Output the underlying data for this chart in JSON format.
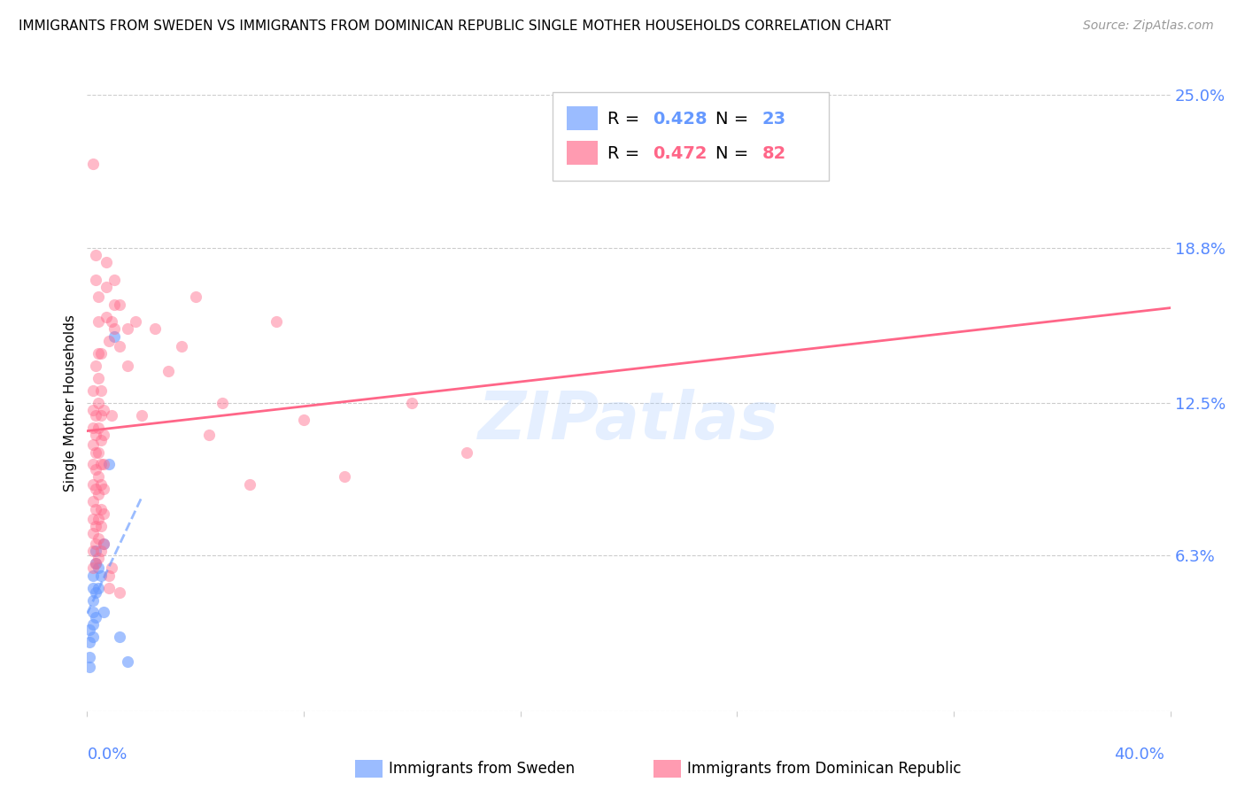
{
  "title": "IMMIGRANTS FROM SWEDEN VS IMMIGRANTS FROM DOMINICAN REPUBLIC SINGLE MOTHER HOUSEHOLDS CORRELATION CHART",
  "source": "Source: ZipAtlas.com",
  "ylabel": "Single Mother Households",
  "color_sweden": "#6699ff",
  "color_dr": "#ff6688",
  "color_axis_labels": "#5588ff",
  "x_lim": [
    0.0,
    0.4
  ],
  "y_lim": [
    0.0,
    0.25
  ],
  "y_ticks": [
    0.0,
    0.063,
    0.125,
    0.188,
    0.25
  ],
  "y_tick_labels": [
    "",
    "6.3%",
    "12.5%",
    "18.8%",
    "25.0%"
  ],
  "sweden_scatter": [
    [
      0.001,
      0.033
    ],
    [
      0.001,
      0.028
    ],
    [
      0.001,
      0.022
    ],
    [
      0.001,
      0.018
    ],
    [
      0.002,
      0.055
    ],
    [
      0.002,
      0.05
    ],
    [
      0.002,
      0.045
    ],
    [
      0.002,
      0.04
    ],
    [
      0.002,
      0.035
    ],
    [
      0.002,
      0.03
    ],
    [
      0.003,
      0.065
    ],
    [
      0.003,
      0.06
    ],
    [
      0.003,
      0.048
    ],
    [
      0.003,
      0.038
    ],
    [
      0.004,
      0.058
    ],
    [
      0.004,
      0.05
    ],
    [
      0.005,
      0.055
    ],
    [
      0.006,
      0.068
    ],
    [
      0.006,
      0.04
    ],
    [
      0.008,
      0.1
    ],
    [
      0.01,
      0.152
    ],
    [
      0.012,
      0.03
    ],
    [
      0.015,
      0.02
    ]
  ],
  "dr_scatter": [
    [
      0.002,
      0.058
    ],
    [
      0.002,
      0.065
    ],
    [
      0.002,
      0.072
    ],
    [
      0.002,
      0.078
    ],
    [
      0.002,
      0.085
    ],
    [
      0.002,
      0.092
    ],
    [
      0.002,
      0.1
    ],
    [
      0.002,
      0.108
    ],
    [
      0.002,
      0.115
    ],
    [
      0.002,
      0.122
    ],
    [
      0.002,
      0.13
    ],
    [
      0.002,
      0.222
    ],
    [
      0.003,
      0.06
    ],
    [
      0.003,
      0.068
    ],
    [
      0.003,
      0.075
    ],
    [
      0.003,
      0.082
    ],
    [
      0.003,
      0.09
    ],
    [
      0.003,
      0.098
    ],
    [
      0.003,
      0.105
    ],
    [
      0.003,
      0.112
    ],
    [
      0.003,
      0.12
    ],
    [
      0.003,
      0.14
    ],
    [
      0.003,
      0.175
    ],
    [
      0.003,
      0.185
    ],
    [
      0.004,
      0.062
    ],
    [
      0.004,
      0.07
    ],
    [
      0.004,
      0.078
    ],
    [
      0.004,
      0.088
    ],
    [
      0.004,
      0.095
    ],
    [
      0.004,
      0.105
    ],
    [
      0.004,
      0.115
    ],
    [
      0.004,
      0.125
    ],
    [
      0.004,
      0.135
    ],
    [
      0.004,
      0.145
    ],
    [
      0.004,
      0.158
    ],
    [
      0.004,
      0.168
    ],
    [
      0.005,
      0.065
    ],
    [
      0.005,
      0.075
    ],
    [
      0.005,
      0.082
    ],
    [
      0.005,
      0.092
    ],
    [
      0.005,
      0.1
    ],
    [
      0.005,
      0.11
    ],
    [
      0.005,
      0.12
    ],
    [
      0.005,
      0.13
    ],
    [
      0.005,
      0.145
    ],
    [
      0.006,
      0.068
    ],
    [
      0.006,
      0.08
    ],
    [
      0.006,
      0.09
    ],
    [
      0.006,
      0.1
    ],
    [
      0.006,
      0.112
    ],
    [
      0.006,
      0.122
    ],
    [
      0.007,
      0.16
    ],
    [
      0.007,
      0.172
    ],
    [
      0.007,
      0.182
    ],
    [
      0.008,
      0.05
    ],
    [
      0.008,
      0.055
    ],
    [
      0.008,
      0.15
    ],
    [
      0.009,
      0.058
    ],
    [
      0.009,
      0.12
    ],
    [
      0.009,
      0.158
    ],
    [
      0.01,
      0.155
    ],
    [
      0.01,
      0.165
    ],
    [
      0.01,
      0.175
    ],
    [
      0.012,
      0.048
    ],
    [
      0.012,
      0.148
    ],
    [
      0.012,
      0.165
    ],
    [
      0.015,
      0.14
    ],
    [
      0.015,
      0.155
    ],
    [
      0.018,
      0.158
    ],
    [
      0.02,
      0.12
    ],
    [
      0.025,
      0.155
    ],
    [
      0.03,
      0.138
    ],
    [
      0.035,
      0.148
    ],
    [
      0.04,
      0.168
    ],
    [
      0.045,
      0.112
    ],
    [
      0.05,
      0.125
    ],
    [
      0.06,
      0.092
    ],
    [
      0.07,
      0.158
    ],
    [
      0.08,
      0.118
    ],
    [
      0.095,
      0.095
    ],
    [
      0.12,
      0.125
    ],
    [
      0.14,
      0.105
    ]
  ]
}
